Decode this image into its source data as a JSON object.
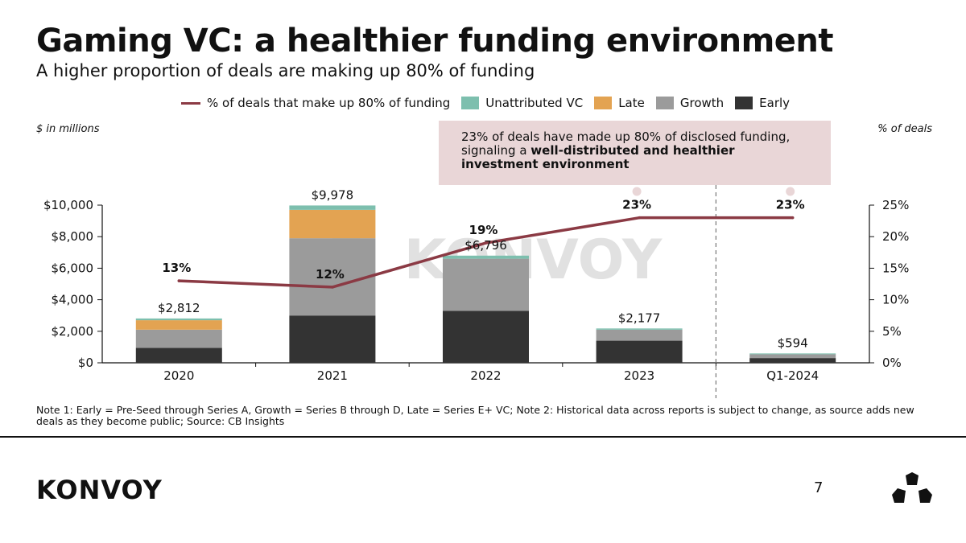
{
  "header": {
    "title": "Gaming VC: a healthier funding environment",
    "subtitle": "A higher proportion of deals are making up 80% of funding"
  },
  "axis_captions": {
    "left": "$ in millions",
    "right": "% of deals"
  },
  "callout": {
    "text_plain": "23% of deals have made up 80% of disclosed funding, signaling a ",
    "text_bold": "well-distributed and healthier investment environment"
  },
  "footer": {
    "note": "Note 1: Early = Pre-Seed through Series A, Growth = Series B through D, Late = Series E+ VC; Note 2: Historical data across reports is subject to change, as source adds new deals as they become public; Source: CB Insights",
    "brand": "KONVOY",
    "page_number": "7"
  },
  "watermark": "KONVOY",
  "colors": {
    "early": "#333333",
    "growth": "#9B9B9B",
    "late": "#E3A352",
    "unattributed": "#7DBFAE",
    "line": "#8B3A44",
    "callout_bg": "#E9D6D7"
  },
  "chart_data": {
    "type": "bar",
    "stacked": true,
    "categories": [
      "2020",
      "2021",
      "2022",
      "2023",
      "Q1-2024"
    ],
    "series": [
      {
        "name": "Early",
        "values": [
          950,
          3000,
          3300,
          1400,
          300
        ]
      },
      {
        "name": "Growth",
        "values": [
          1150,
          4900,
          3300,
          700,
          240
        ]
      },
      {
        "name": "Late",
        "values": [
          600,
          1800,
          0,
          0,
          0
        ]
      },
      {
        "name": "Unattributed VC",
        "values": [
          112,
          278,
          196,
          77,
          54
        ]
      }
    ],
    "totals": [
      2812,
      9978,
      6796,
      2177,
      594
    ],
    "total_labels": [
      "$2,812",
      "$9,978",
      "$6,796",
      "$2,177",
      "$594"
    ],
    "line_series": {
      "name": "% of deals that make up 80% of funding",
      "values": [
        13,
        12,
        19,
        23,
        23
      ],
      "labels": [
        "13%",
        "12%",
        "19%",
        "23%",
        "23%"
      ]
    },
    "legend": [
      "% of deals that make up 80% of funding",
      "Unattributed VC",
      "Late",
      "Growth",
      "Early"
    ],
    "ylim": [
      0,
      10000
    ],
    "yticks": [
      "$0",
      "$2,000",
      "$4,000",
      "$6,000",
      "$8,000",
      "$10,000"
    ],
    "y2lim": [
      0,
      25
    ],
    "y2ticks": [
      "0%",
      "5%",
      "10%",
      "15%",
      "20%",
      "25%"
    ],
    "ylabel": "$ in millions",
    "y2label": "% of deals",
    "divider_after_category": "2023"
  }
}
